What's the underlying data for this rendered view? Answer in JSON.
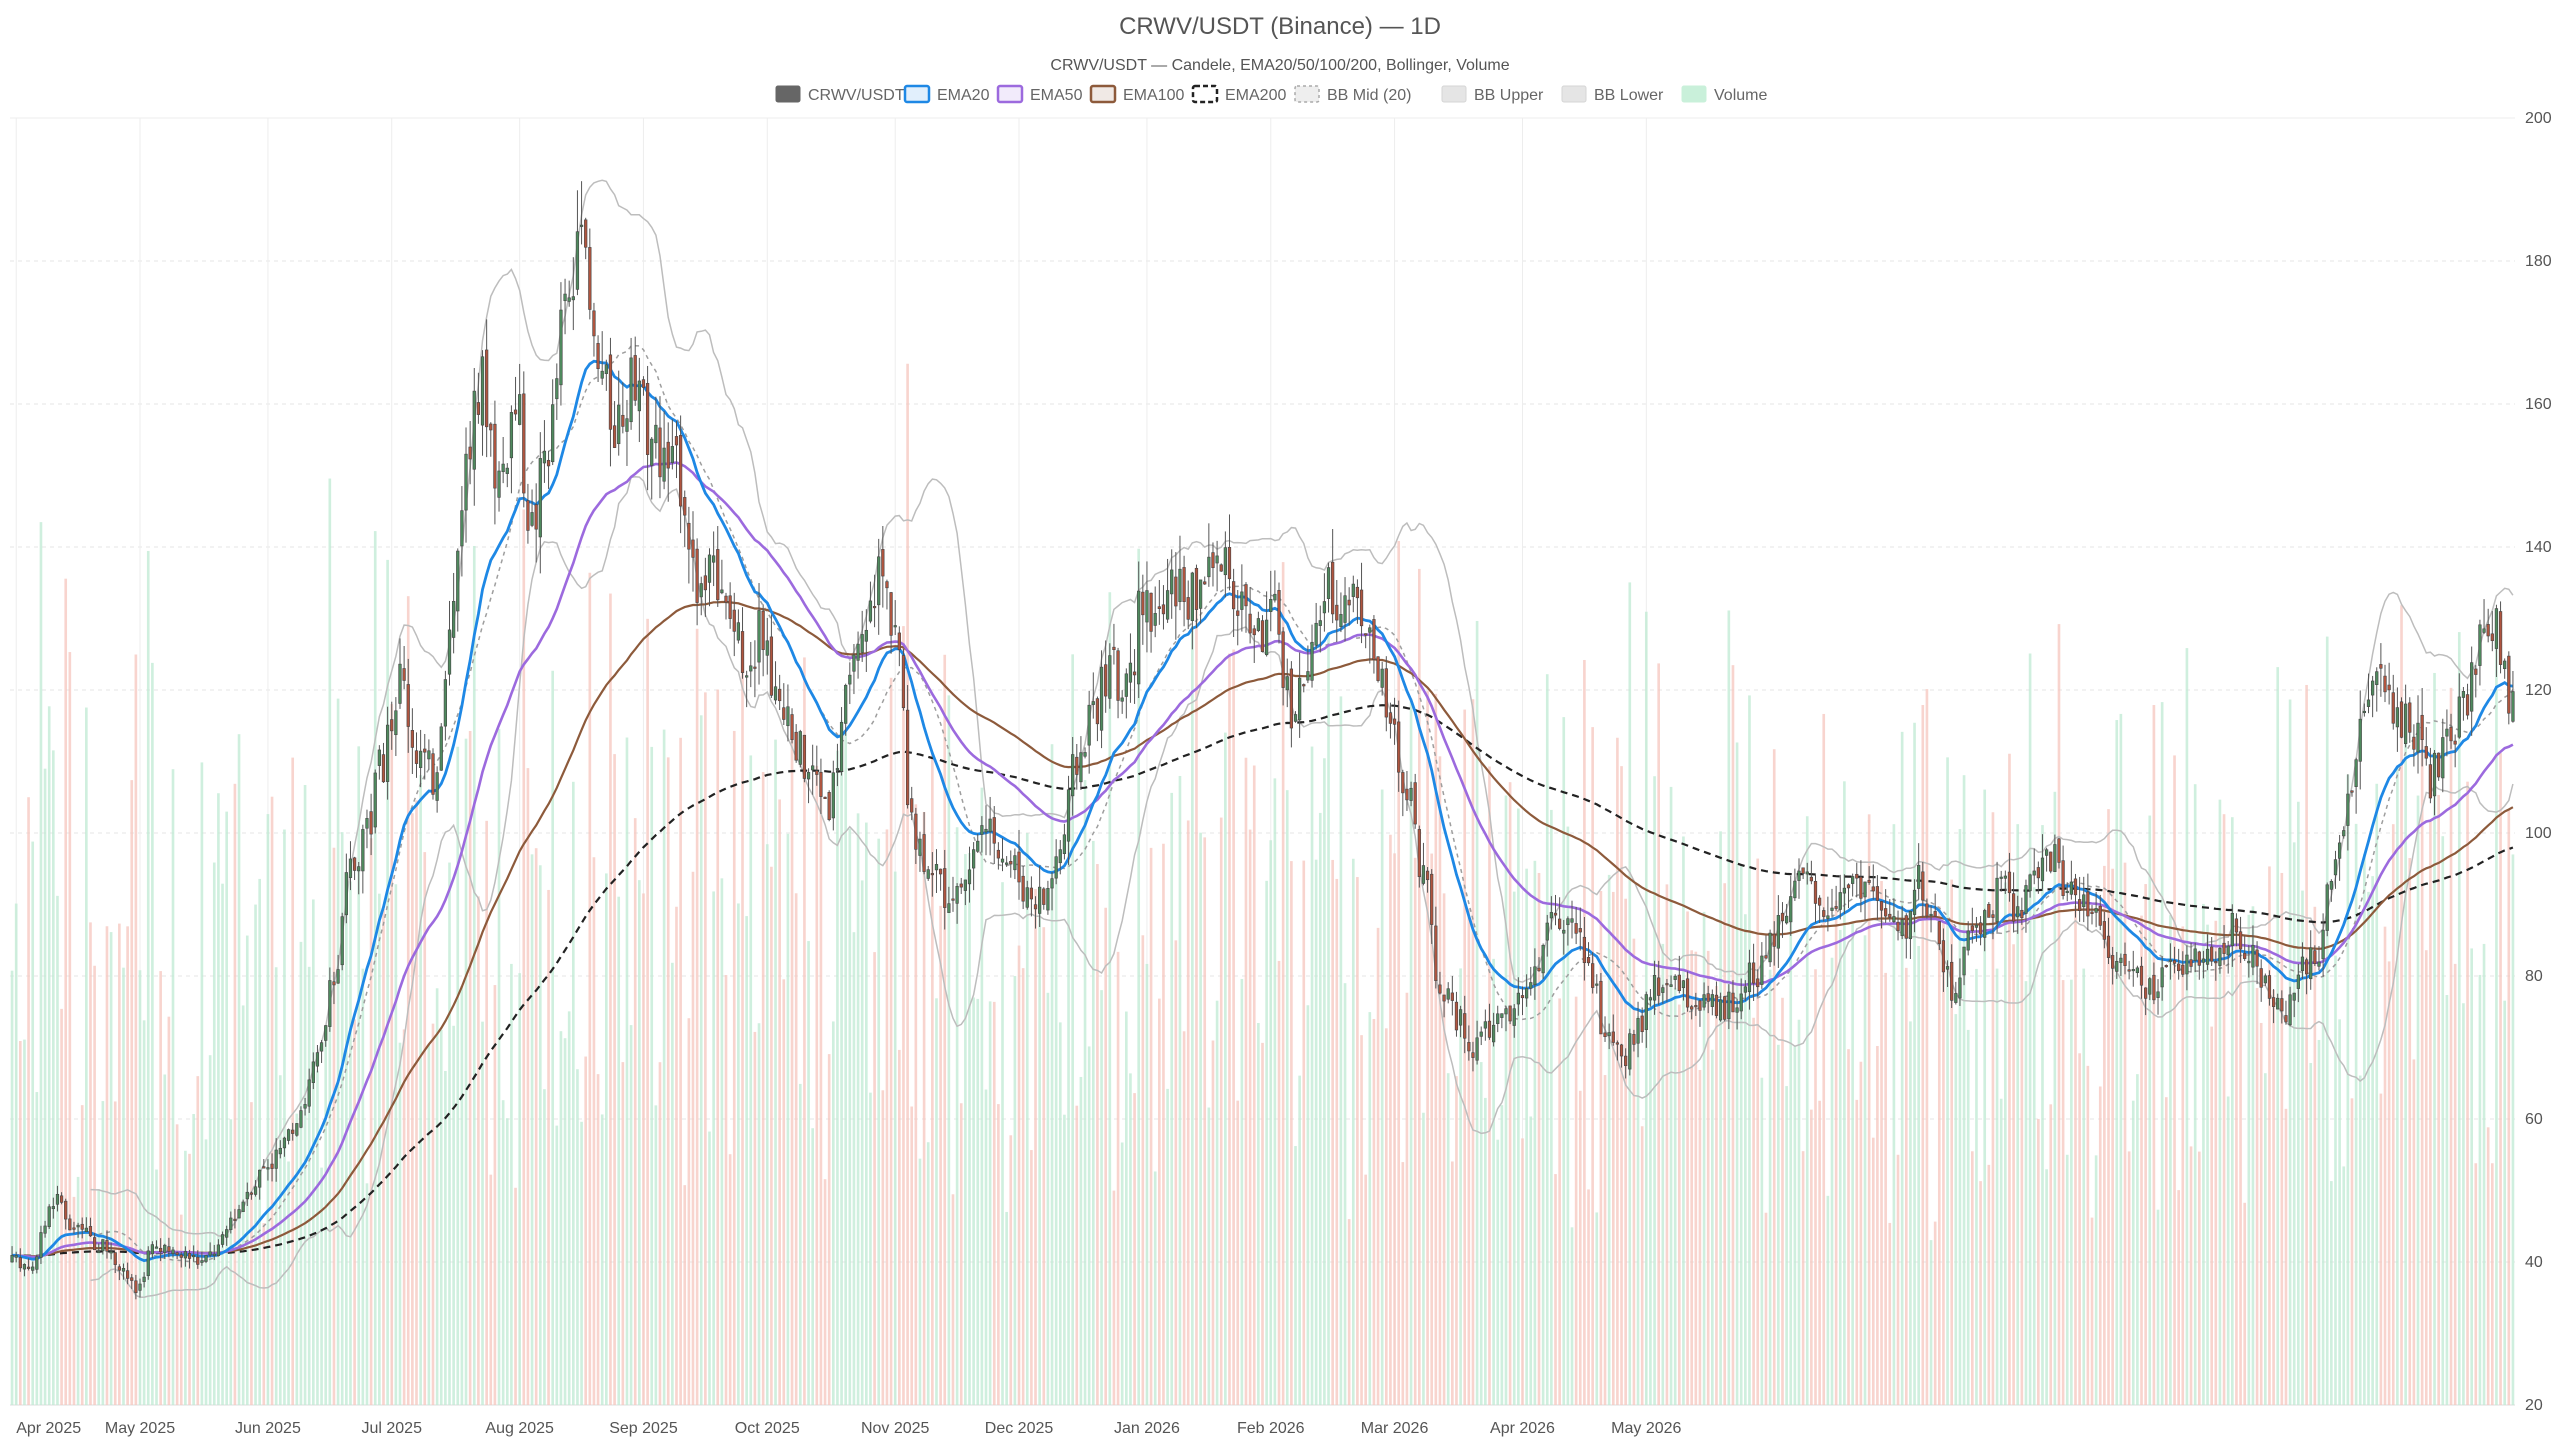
{
  "chart_data": {
    "type": "candlestick",
    "title": "CRWV/USDT (Binance) — 1D",
    "subtitle": "CRWV/USDT — Candele, EMA20/50/100/200, Bollinger, Volume",
    "legend": [
      {
        "label": "CRWV/USDT",
        "color": "#666666",
        "style": "solid-fill"
      },
      {
        "label": "EMA20",
        "color": "#1e88e5",
        "style": "outline"
      },
      {
        "label": "EMA50",
        "color": "#9c6ade",
        "style": "outline"
      },
      {
        "label": "EMA100",
        "color": "#8d5a3b",
        "style": "outline"
      },
      {
        "label": "EMA200",
        "color": "#222222",
        "style": "dashed"
      },
      {
        "label": "BB Mid (20)",
        "color": "#aaaaaa",
        "style": "dotted"
      },
      {
        "label": "BB Upper",
        "color": "#bbbbbb",
        "style": "fill"
      },
      {
        "label": "BB Lower",
        "color": "#bbbbbb",
        "style": "fill"
      },
      {
        "label": "Volume",
        "color": "#9fe3c0",
        "style": "fill"
      }
    ],
    "legend_placement": "top-center",
    "x_ticks": [
      "Apr 2025",
      "May 2025",
      "Jun 2025",
      "Jul 2025",
      "Aug 2025",
      "Sep 2025",
      "Oct 2025",
      "Nov 2025",
      "Dec 2025",
      "Jan 2026",
      "Feb 2026",
      "Mar 2026",
      "Apr 2026",
      "May 2026"
    ],
    "y_ticks": [
      20,
      40,
      60,
      80,
      100,
      120,
      140,
      160,
      180,
      200
    ],
    "y_axis_side": "right",
    "ylim": [
      20,
      200
    ],
    "grid": true,
    "colors": {
      "up": "#4f8a5e",
      "down": "#b0553f",
      "vol_up": "#bfead3",
      "vol_down": "#f6c5bd"
    },
    "anchors": [
      [
        0,
        40
      ],
      [
        5,
        39.5
      ],
      [
        10,
        49
      ],
      [
        14,
        45
      ],
      [
        18,
        44
      ],
      [
        22,
        42
      ],
      [
        26,
        40
      ],
      [
        30,
        36
      ],
      [
        34,
        42
      ],
      [
        38,
        41
      ],
      [
        42,
        41
      ],
      [
        46,
        40
      ],
      [
        50,
        42
      ],
      [
        54,
        47
      ],
      [
        58,
        51
      ],
      [
        62,
        54
      ],
      [
        66,
        56
      ],
      [
        70,
        62
      ],
      [
        74,
        68
      ],
      [
        78,
        79
      ],
      [
        82,
        95
      ],
      [
        86,
        101
      ],
      [
        90,
        110
      ],
      [
        94,
        122
      ],
      [
        98,
        112
      ],
      [
        102,
        108
      ],
      [
        106,
        128
      ],
      [
        110,
        152
      ],
      [
        114,
        163
      ],
      [
        118,
        150
      ],
      [
        122,
        160
      ],
      [
        126,
        143
      ],
      [
        130,
        155
      ],
      [
        134,
        173
      ],
      [
        138,
        180
      ],
      [
        142,
        165
      ],
      [
        146,
        158
      ],
      [
        150,
        162
      ],
      [
        154,
        157
      ],
      [
        158,
        152
      ],
      [
        162,
        150
      ],
      [
        166,
        135
      ],
      [
        170,
        135
      ],
      [
        174,
        130
      ],
      [
        178,
        125
      ],
      [
        182,
        128
      ],
      [
        186,
        117
      ],
      [
        190,
        112
      ],
      [
        194,
        108
      ],
      [
        198,
        105
      ],
      [
        202,
        118
      ],
      [
        206,
        125
      ],
      [
        210,
        137
      ],
      [
        214,
        130
      ],
      [
        218,
        100
      ],
      [
        222,
        97
      ],
      [
        226,
        92
      ],
      [
        230,
        93
      ],
      [
        234,
        98
      ],
      [
        238,
        100
      ],
      [
        242,
        96
      ],
      [
        246,
        92
      ],
      [
        250,
        91
      ],
      [
        254,
        98
      ],
      [
        258,
        110
      ],
      [
        262,
        118
      ],
      [
        266,
        123
      ],
      [
        270,
        119
      ],
      [
        274,
        132
      ],
      [
        278,
        130
      ],
      [
        282,
        135
      ],
      [
        286,
        133
      ],
      [
        290,
        138
      ],
      [
        294,
        136
      ],
      [
        298,
        132
      ],
      [
        302,
        128
      ],
      [
        306,
        130
      ],
      [
        310,
        118
      ],
      [
        314,
        122
      ],
      [
        318,
        134
      ],
      [
        322,
        133
      ],
      [
        326,
        134
      ],
      [
        330,
        125
      ],
      [
        334,
        115
      ],
      [
        338,
        105
      ],
      [
        342,
        95
      ],
      [
        346,
        78
      ],
      [
        350,
        74
      ],
      [
        354,
        70
      ],
      [
        358,
        73
      ],
      [
        362,
        74
      ],
      [
        366,
        77
      ],
      [
        370,
        83
      ],
      [
        374,
        87
      ],
      [
        378,
        86
      ],
      [
        382,
        82
      ],
      [
        386,
        72
      ],
      [
        390,
        68
      ],
      [
        394,
        73
      ],
      [
        398,
        78
      ],
      [
        402,
        80
      ],
      [
        406,
        77
      ],
      [
        410,
        76
      ],
      [
        414,
        75
      ],
      [
        418,
        77
      ],
      [
        422,
        80
      ],
      [
        426,
        84
      ],
      [
        430,
        91
      ],
      [
        434,
        93
      ],
      [
        438,
        89
      ],
      [
        442,
        92
      ],
      [
        446,
        94
      ],
      [
        450,
        93
      ],
      [
        454,
        88
      ],
      [
        458,
        86
      ],
      [
        462,
        94
      ],
      [
        466,
        86
      ],
      [
        470,
        78
      ],
      [
        474,
        85
      ],
      [
        478,
        89
      ],
      [
        482,
        92
      ],
      [
        486,
        88
      ],
      [
        490,
        94
      ],
      [
        494,
        97
      ],
      [
        498,
        93
      ],
      [
        502,
        91
      ],
      [
        506,
        88
      ],
      [
        510,
        82
      ],
      [
        514,
        80
      ],
      [
        518,
        78
      ],
      [
        522,
        80
      ],
      [
        526,
        81
      ],
      [
        530,
        84
      ],
      [
        534,
        82
      ],
      [
        538,
        87
      ],
      [
        542,
        84
      ],
      [
        546,
        78
      ],
      [
        550,
        75
      ],
      [
        554,
        80
      ],
      [
        558,
        82
      ],
      [
        562,
        92
      ],
      [
        566,
        105
      ],
      [
        570,
        118
      ],
      [
        574,
        121
      ],
      [
        578,
        117
      ],
      [
        582,
        115
      ],
      [
        586,
        108
      ],
      [
        590,
        112
      ],
      [
        594,
        118
      ],
      [
        598,
        127
      ],
      [
        602,
        129
      ],
      [
        606,
        117
      ]
    ],
    "volume_shown": true
  }
}
